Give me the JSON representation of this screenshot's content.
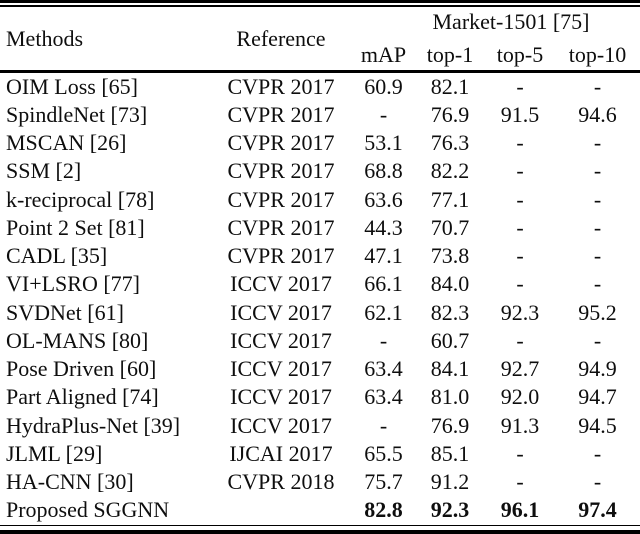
{
  "table": {
    "header": {
      "methods": "Methods",
      "reference": "Reference",
      "dataset_group": "Market-1501 [75]",
      "metrics": [
        "mAP",
        "top-1",
        "top-5",
        "top-10"
      ]
    },
    "rows": [
      {
        "method": "OIM Loss [65]",
        "reference": "CVPR 2017",
        "values": [
          "60.9",
          "82.1",
          "-",
          "-"
        ],
        "bold_values": false
      },
      {
        "method": "SpindleNet [73]",
        "reference": "CVPR 2017",
        "values": [
          "-",
          "76.9",
          "91.5",
          "94.6"
        ],
        "bold_values": false
      },
      {
        "method": "MSCAN [26]",
        "reference": "CVPR 2017",
        "values": [
          "53.1",
          "76.3",
          "-",
          "-"
        ],
        "bold_values": false
      },
      {
        "method": "SSM [2]",
        "reference": "CVPR 2017",
        "values": [
          "68.8",
          "82.2",
          "-",
          "-"
        ],
        "bold_values": false
      },
      {
        "method": "k-reciprocal [78]",
        "reference": "CVPR 2017",
        "values": [
          "63.6",
          "77.1",
          "-",
          "-"
        ],
        "bold_values": false
      },
      {
        "method": "Point 2 Set [81]",
        "reference": "CVPR 2017",
        "values": [
          "44.3",
          "70.7",
          "-",
          "-"
        ],
        "bold_values": false
      },
      {
        "method": "CADL [35]",
        "reference": "CVPR 2017",
        "values": [
          "47.1",
          "73.8",
          "-",
          "-"
        ],
        "bold_values": false
      },
      {
        "method": "VI+LSRO [77]",
        "reference": "ICCV 2017",
        "values": [
          "66.1",
          "84.0",
          "-",
          "-"
        ],
        "bold_values": false
      },
      {
        "method": "SVDNet [61]",
        "reference": "ICCV 2017",
        "values": [
          "62.1",
          "82.3",
          "92.3",
          "95.2"
        ],
        "bold_values": false
      },
      {
        "method": "OL-MANS [80]",
        "reference": "ICCV 2017",
        "values": [
          "-",
          "60.7",
          "-",
          "-"
        ],
        "bold_values": false
      },
      {
        "method": "Pose Driven [60]",
        "reference": "ICCV 2017",
        "values": [
          "63.4",
          "84.1",
          "92.7",
          "94.9"
        ],
        "bold_values": false
      },
      {
        "method": "Part Aligned [74]",
        "reference": "ICCV 2017",
        "values": [
          "63.4",
          "81.0",
          "92.0",
          "94.7"
        ],
        "bold_values": false
      },
      {
        "method": "HydraPlus-Net [39]",
        "reference": "ICCV 2017",
        "values": [
          "-",
          "76.9",
          "91.3",
          "94.5"
        ],
        "bold_values": false
      },
      {
        "method": "JLML [29]",
        "reference": "IJCAI 2017",
        "values": [
          "65.5",
          "85.1",
          "-",
          "-"
        ],
        "bold_values": false
      },
      {
        "method": "HA-CNN [30]",
        "reference": "CVPR 2018",
        "values": [
          "75.7",
          "91.2",
          "-",
          "-"
        ],
        "bold_values": false
      },
      {
        "method": "Proposed SGGNN",
        "reference": "",
        "values": [
          "82.8",
          "92.3",
          "96.1",
          "97.4"
        ],
        "bold_values": true
      }
    ]
  }
}
